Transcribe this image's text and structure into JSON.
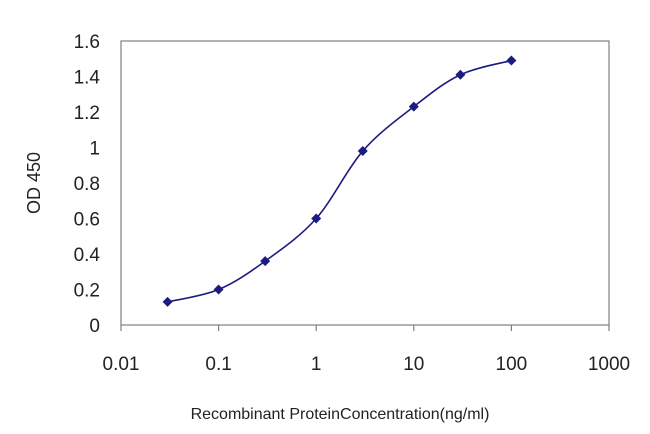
{
  "chart_data": {
    "type": "line",
    "xscale": "log",
    "xlim": [
      0.01,
      1000
    ],
    "ylim": [
      0,
      1.6
    ],
    "xlabel": "Recombinant ProteinConcentration(ng/ml)",
    "ylabel": "OD 450",
    "grid": {
      "y": true,
      "x": false
    },
    "xticks": [
      {
        "value": 0.01,
        "label": "0.01"
      },
      {
        "value": 0.1,
        "label": "0.1"
      },
      {
        "value": 1,
        "label": "1"
      },
      {
        "value": 10,
        "label": "10"
      },
      {
        "value": 100,
        "label": "100"
      },
      {
        "value": 1000,
        "label": "1000"
      }
    ],
    "yticks": [
      {
        "value": 0,
        "label": "0"
      },
      {
        "value": 0.2,
        "label": "0.2"
      },
      {
        "value": 0.4,
        "label": "0.4"
      },
      {
        "value": 0.6,
        "label": "0.6"
      },
      {
        "value": 0.8,
        "label": "0.8"
      },
      {
        "value": 1.0,
        "label": "1"
      },
      {
        "value": 1.2,
        "label": "1.2"
      },
      {
        "value": 1.4,
        "label": "1.4"
      },
      {
        "value": 1.6,
        "label": "1.6"
      }
    ],
    "series": [
      {
        "color": "#1c1c80",
        "x": [
          0.03,
          0.1,
          0.3,
          1,
          3,
          10,
          30,
          100
        ],
        "y": [
          0.13,
          0.2,
          0.36,
          0.6,
          0.98,
          1.23,
          1.41,
          1.49
        ]
      }
    ]
  }
}
